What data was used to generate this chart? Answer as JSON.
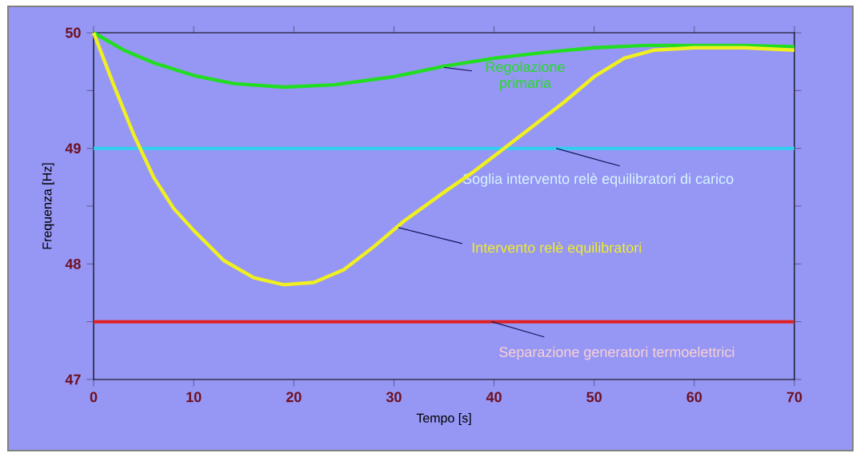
{
  "chart_data": {
    "type": "line",
    "xlabel": "Tempo [s]",
    "ylabel": "Frequenza [Hz]",
    "xlim": [
      0,
      70
    ],
    "ylim": [
      47,
      50
    ],
    "xticks": [
      0,
      10,
      20,
      30,
      40,
      50,
      60,
      70
    ],
    "yticks": [
      47,
      {
        "value": 47.5,
        "label": null
      },
      48,
      {
        "value": 48.5,
        "label": null
      },
      49,
      {
        "value": 49.5,
        "label": null
      },
      50
    ],
    "series": [
      {
        "name": "Regolazione primaria",
        "color": "#22dd22",
        "x": [
          0,
          3,
          6,
          10,
          14,
          19,
          24,
          30,
          35,
          40,
          45,
          50,
          55,
          60,
          65,
          70
        ],
        "values": [
          50,
          49.85,
          49.74,
          49.63,
          49.56,
          49.53,
          49.55,
          49.62,
          49.71,
          49.78,
          49.83,
          49.87,
          49.89,
          49.89,
          49.89,
          49.88
        ]
      },
      {
        "name": "Intervento relè equilibratori",
        "color": "#f0f020",
        "x": [
          0,
          2,
          4,
          6,
          8,
          10,
          13,
          16,
          19,
          22,
          25,
          28,
          31,
          35,
          38,
          41,
          44,
          47,
          50,
          53,
          56,
          60,
          65,
          70
        ],
        "values": [
          50,
          49.55,
          49.12,
          48.75,
          48.48,
          48.29,
          48.03,
          47.88,
          47.82,
          47.84,
          47.95,
          48.15,
          48.37,
          48.62,
          48.8,
          49.0,
          49.2,
          49.4,
          49.62,
          49.78,
          49.85,
          49.87,
          49.87,
          49.85
        ]
      }
    ],
    "ref_lines": [
      {
        "axis": "y",
        "value": 49,
        "label": "Soglia intervento relè equilibratori di carico",
        "color": "#30d0f0"
      },
      {
        "axis": "y",
        "value": 47.5,
        "label": "Separazione generatori termoelettrici",
        "color": "#e02020"
      }
    ]
  }
}
